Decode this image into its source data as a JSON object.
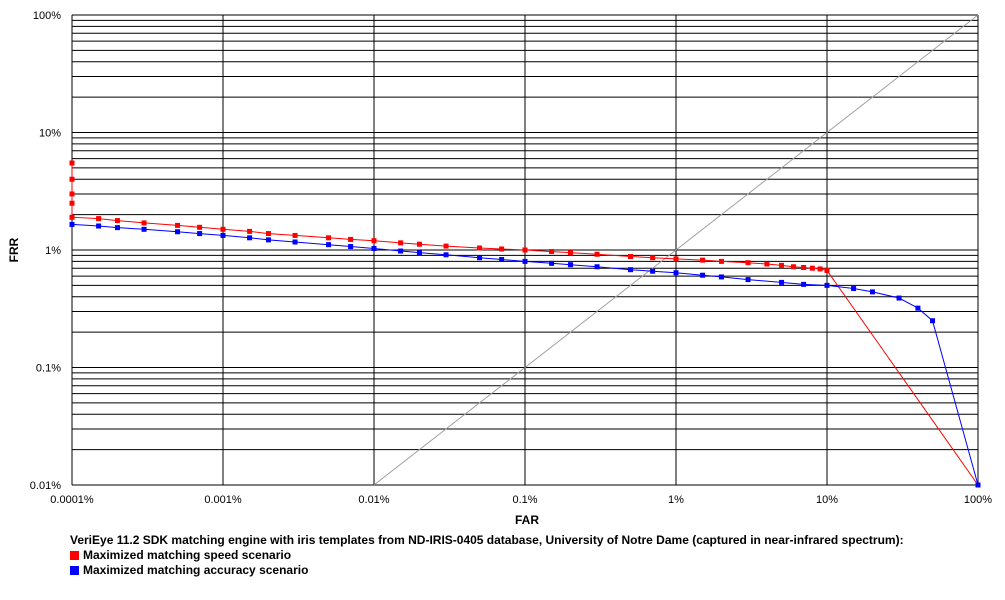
{
  "chart_data": {
    "type": "line",
    "xlabel": "FAR",
    "ylabel": "FRR",
    "x_scale": "log",
    "y_scale": "log",
    "xlim": [
      0.0001,
      100
    ],
    "ylim": [
      0.01,
      100
    ],
    "x_ticks": [
      "0.0001%",
      "0.001%",
      "0.01%",
      "0.1%",
      "1%",
      "10%",
      "100%"
    ],
    "y_ticks": [
      "100%",
      "10%",
      "1%",
      "0.1%",
      "0.01%"
    ],
    "grid": true,
    "reference_line": {
      "from": [
        0.01,
        0.01
      ],
      "to": [
        100,
        100
      ],
      "color": "#a0a0a0"
    },
    "caption": "VeriEye 11.2 SDK matching engine with iris templates from ND-IRIS-0405 database, University of Notre Dame (captured in near-infrared spectrum):",
    "series": [
      {
        "name": "Maximized matching speed scenario",
        "color": "#ff0000",
        "x": [
          0.0001,
          0.0001,
          0.0001,
          0.0001,
          0.0001,
          0.00015,
          0.0002,
          0.0003,
          0.0005,
          0.0007,
          0.001,
          0.0015,
          0.002,
          0.003,
          0.005,
          0.007,
          0.01,
          0.015,
          0.02,
          0.03,
          0.05,
          0.07,
          0.1,
          0.15,
          0.2,
          0.3,
          0.5,
          0.7,
          1,
          1.5,
          2,
          3,
          4,
          5,
          6,
          7,
          8,
          9,
          10,
          100
        ],
        "y": [
          5.5,
          4.0,
          3.0,
          2.5,
          1.9,
          1.85,
          1.78,
          1.7,
          1.62,
          1.56,
          1.5,
          1.44,
          1.38,
          1.33,
          1.27,
          1.23,
          1.2,
          1.15,
          1.12,
          1.08,
          1.04,
          1.02,
          1.0,
          0.97,
          0.95,
          0.92,
          0.88,
          0.86,
          0.84,
          0.82,
          0.8,
          0.78,
          0.76,
          0.74,
          0.72,
          0.71,
          0.7,
          0.69,
          0.67,
          0.01
        ]
      },
      {
        "name": "Maximized matching accuracy scenario",
        "color": "#0000ff",
        "x": [
          0.0001,
          0.00015,
          0.0002,
          0.0003,
          0.0005,
          0.0007,
          0.001,
          0.0015,
          0.002,
          0.003,
          0.005,
          0.007,
          0.01,
          0.015,
          0.02,
          0.03,
          0.05,
          0.07,
          0.1,
          0.15,
          0.2,
          0.3,
          0.5,
          0.7,
          1,
          1.5,
          2,
          3,
          5,
          7,
          10,
          15,
          20,
          30,
          40,
          50,
          100
        ],
        "y": [
          1.65,
          1.6,
          1.55,
          1.5,
          1.43,
          1.38,
          1.33,
          1.27,
          1.22,
          1.17,
          1.11,
          1.07,
          1.03,
          0.98,
          0.95,
          0.91,
          0.86,
          0.83,
          0.8,
          0.77,
          0.75,
          0.72,
          0.68,
          0.66,
          0.64,
          0.61,
          0.59,
          0.56,
          0.53,
          0.51,
          0.5,
          0.47,
          0.44,
          0.39,
          0.32,
          0.25,
          0.01
        ]
      }
    ]
  }
}
